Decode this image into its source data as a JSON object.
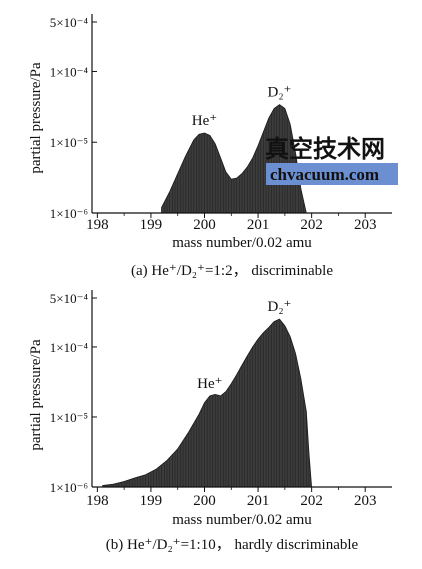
{
  "chart_data": [
    {
      "type": "area",
      "xlabel": "mass number/0.02 amu",
      "ylabel": "partial pressure/Pa",
      "caption": "(a) He⁺/D₂⁺=1:2， discriminable",
      "x_ticks": [
        "198",
        "199",
        "200",
        "201",
        "202",
        "203"
      ],
      "y_ticks": [
        "1×10⁻⁶",
        "1×10⁻⁵",
        "1×10⁻⁴",
        "5×10⁻⁴"
      ],
      "y_tick_values": [
        1e-06,
        1e-05,
        0.0001,
        0.0005
      ],
      "xlim": [
        197.9,
        203.5
      ],
      "ylim": [
        1e-06,
        0.0005
      ],
      "log_y": true,
      "annotations": [
        {
          "text": "He⁺",
          "x": 200.0
        },
        {
          "text": "D₂⁺",
          "x": 201.4
        }
      ],
      "series": [
        {
          "x": [
            199.2,
            199.35,
            199.5,
            199.65,
            199.8,
            199.9,
            200.0,
            200.1,
            200.2,
            200.3,
            200.4,
            200.5,
            200.6,
            200.7,
            200.8,
            200.9,
            201.0,
            201.1,
            201.2,
            201.3,
            201.4,
            201.5,
            201.6,
            201.7,
            201.8,
            201.9
          ],
          "y": [
            1.2e-06,
            2e-06,
            3.6e-06,
            6.5e-06,
            1.08e-05,
            1.3e-05,
            1.35e-05,
            1.25e-05,
            9.5e-06,
            6e-06,
            3.8e-06,
            3e-06,
            3.1e-06,
            3.6e-06,
            4.5e-06,
            6e-06,
            9e-06,
            1.4e-05,
            2.2e-05,
            3e-05,
            3.4e-05,
            3e-05,
            1.8e-05,
            7e-06,
            2.2e-06,
            1e-06
          ]
        }
      ]
    },
    {
      "type": "area",
      "xlabel": "mass number/0.02 amu",
      "ylabel": "partial pressure/Pa",
      "caption": "(b) He⁺/D₂⁺=1:10， hardly discriminable",
      "x_ticks": [
        "198",
        "199",
        "200",
        "201",
        "202",
        "203"
      ],
      "y_ticks": [
        "1×10⁻⁶",
        "1×10⁻⁵",
        "1×10⁻⁴",
        "5×10⁻⁴"
      ],
      "y_tick_values": [
        1e-06,
        1e-05,
        0.0001,
        0.0005
      ],
      "xlim": [
        197.9,
        203.5
      ],
      "ylim": [
        1e-06,
        0.0005
      ],
      "log_y": true,
      "annotations": [
        {
          "text": "He⁺",
          "x": 200.1
        },
        {
          "text": "D₂⁺",
          "x": 201.4
        }
      ],
      "series": [
        {
          "x": [
            198.1,
            198.3,
            198.5,
            198.7,
            198.9,
            199.1,
            199.3,
            199.5,
            199.7,
            199.9,
            200.0,
            200.1,
            200.2,
            200.3,
            200.4,
            200.5,
            200.6,
            200.7,
            200.8,
            200.9,
            201.0,
            201.1,
            201.2,
            201.3,
            201.4,
            201.5,
            201.6,
            201.7,
            201.8,
            201.9,
            201.95,
            202.0
          ],
          "y": [
            1.05e-06,
            1.1e-06,
            1.2e-06,
            1.35e-06,
            1.5e-06,
            1.8e-06,
            2.4e-06,
            3.5e-06,
            6e-06,
            1.1e-05,
            1.6e-05,
            2e-05,
            2.1e-05,
            2e-05,
            2.3e-05,
            3e-05,
            4e-05,
            5.5e-05,
            7.5e-05,
            0.0001,
            0.00013,
            0.00016,
            0.00019,
            0.00023,
            0.00025,
            0.0002,
            0.00014,
            8e-05,
            3.5e-05,
            1.2e-05,
            3e-06,
            1e-06
          ]
        }
      ]
    }
  ],
  "watermark": {
    "title": "真空技术网",
    "url": "chvacuum.com",
    "title_color": "#5a7fc4",
    "url_color": "#ffffff",
    "url_bg": "#6b8fd0"
  },
  "colors": {
    "fill": "#3c3c3c",
    "stroke": "#1a1a1a",
    "axis": "#111111"
  }
}
